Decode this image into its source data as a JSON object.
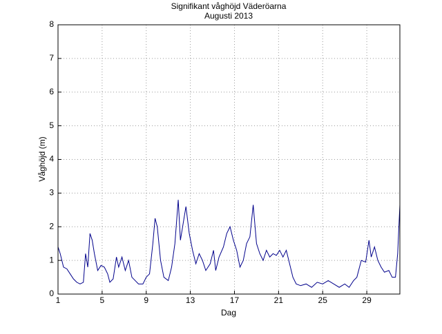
{
  "chart_data": {
    "type": "line",
    "title": "Signifikant våghöjd Väderöarna",
    "subtitle": "Augusti 2013",
    "x_label": "Dag",
    "y_label": "Våghöjd (m)",
    "x": [
      1.0,
      1.2,
      1.5,
      1.8,
      2.1,
      2.4,
      2.7,
      3.0,
      3.3,
      3.5,
      3.7,
      3.9,
      4.1,
      4.3,
      4.6,
      4.9,
      5.2,
      5.5,
      5.7,
      6.0,
      6.3,
      6.5,
      6.8,
      7.1,
      7.4,
      7.7,
      8.0,
      8.3,
      8.7,
      9.0,
      9.3,
      9.6,
      9.8,
      10.0,
      10.3,
      10.6,
      11.0,
      11.3,
      11.6,
      11.9,
      12.1,
      12.3,
      12.6,
      12.9,
      13.2,
      13.5,
      13.8,
      14.1,
      14.4,
      14.8,
      15.1,
      15.3,
      15.6,
      16.0,
      16.3,
      16.6,
      16.9,
      17.2,
      17.5,
      17.8,
      18.1,
      18.4,
      18.7,
      19.0,
      19.3,
      19.6,
      19.9,
      20.2,
      20.5,
      20.8,
      21.1,
      21.4,
      21.7,
      22.0,
      22.3,
      22.6,
      23.0,
      23.5,
      24.0,
      24.5,
      25.0,
      25.5,
      26.0,
      26.5,
      27.0,
      27.4,
      27.8,
      28.1,
      28.5,
      28.9,
      29.2,
      29.4,
      29.7,
      30.0,
      30.3,
      30.6,
      31.0,
      31.3,
      31.6,
      31.8,
      32.0
    ],
    "series": [
      {
        "name": "Våghöjd",
        "color": "#00008b",
        "values": [
          1.4,
          1.2,
          0.8,
          0.75,
          0.6,
          0.45,
          0.35,
          0.3,
          0.35,
          1.2,
          0.8,
          1.8,
          1.6,
          1.2,
          0.7,
          0.85,
          0.8,
          0.6,
          0.35,
          0.45,
          1.1,
          0.8,
          1.1,
          0.7,
          1.0,
          0.5,
          0.4,
          0.3,
          0.3,
          0.5,
          0.6,
          1.5,
          2.25,
          2.0,
          1.0,
          0.5,
          0.4,
          0.8,
          1.5,
          2.8,
          1.6,
          2.0,
          2.6,
          1.8,
          1.3,
          0.9,
          1.2,
          1.0,
          0.7,
          0.9,
          1.3,
          0.7,
          1.1,
          1.4,
          1.8,
          2.0,
          1.6,
          1.3,
          0.8,
          1.0,
          1.5,
          1.7,
          2.65,
          1.5,
          1.2,
          1.0,
          1.3,
          1.1,
          1.2,
          1.15,
          1.3,
          1.1,
          1.3,
          0.9,
          0.5,
          0.3,
          0.25,
          0.3,
          0.2,
          0.35,
          0.3,
          0.4,
          0.3,
          0.2,
          0.3,
          0.2,
          0.4,
          0.5,
          1.0,
          0.95,
          1.6,
          1.1,
          1.4,
          1.0,
          0.8,
          0.65,
          0.7,
          0.5,
          0.5,
          1.2,
          2.65
        ]
      }
    ],
    "xlim": [
      1,
      32
    ],
    "ylim": [
      0,
      8
    ],
    "xticks": [
      1,
      5,
      9,
      13,
      17,
      21,
      25,
      29
    ],
    "yticks": [
      0,
      1,
      2,
      3,
      4,
      5,
      6,
      7,
      8
    ],
    "grid": true
  }
}
